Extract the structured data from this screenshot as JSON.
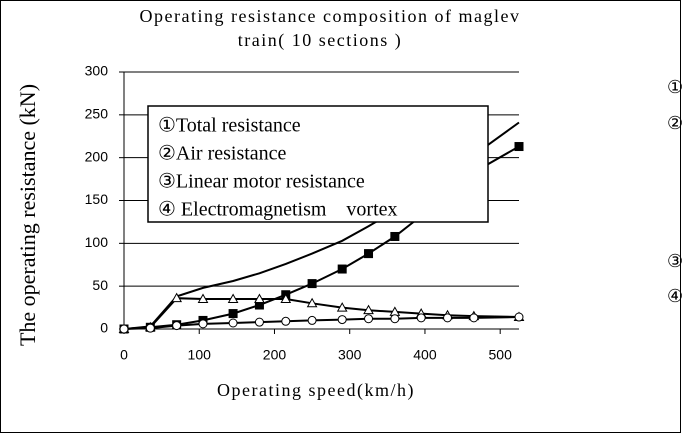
{
  "chart_data": {
    "type": "line",
    "title": [
      "Operating resistance composition of maglev",
      "train( 10 sections )"
    ],
    "x_label": "Operating speed(km/h)",
    "y_label": "The operating resistance (kN)",
    "x": [
      0,
      35,
      70,
      105,
      145,
      180,
      215,
      250,
      290,
      325,
      360,
      395,
      430,
      465,
      525
    ],
    "series": [
      {
        "name": "①Total resistance",
        "color": "#000000",
        "marker": null,
        "values": [
          0,
          3,
          38,
          48,
          56,
          65,
          76,
          88,
          103,
          120,
          138,
          158,
          180,
          203,
          241
        ]
      },
      {
        "name": "②Air resistance",
        "color": "#000000",
        "marker": "square",
        "values": [
          0,
          2,
          5,
          10,
          18,
          28,
          40,
          53,
          70,
          88,
          108,
          132,
          157,
          183,
          213
        ]
      },
      {
        "name": "③Linear motor resistance",
        "color": "#000000",
        "marker": "triangle",
        "values": [
          0,
          2,
          36,
          35,
          35,
          35,
          35,
          30,
          25,
          22,
          20,
          18,
          16,
          15,
          14
        ]
      },
      {
        "name": "④ Electromagnetism　vortex",
        "color": "#000000",
        "marker": "circle",
        "values": [
          0,
          1,
          4,
          6,
          7,
          8,
          9,
          10,
          11,
          12,
          12,
          13,
          13,
          13,
          14
        ]
      }
    ],
    "annotations": [
      "①",
      "②",
      "③",
      "④"
    ],
    "xlim": [
      0,
      525
    ],
    "xticks": [
      0,
      100,
      200,
      300,
      400,
      500
    ],
    "ylim": [
      0,
      300
    ],
    "yticks": [
      0,
      50,
      100,
      150,
      200,
      250,
      300
    ],
    "grid": true
  }
}
